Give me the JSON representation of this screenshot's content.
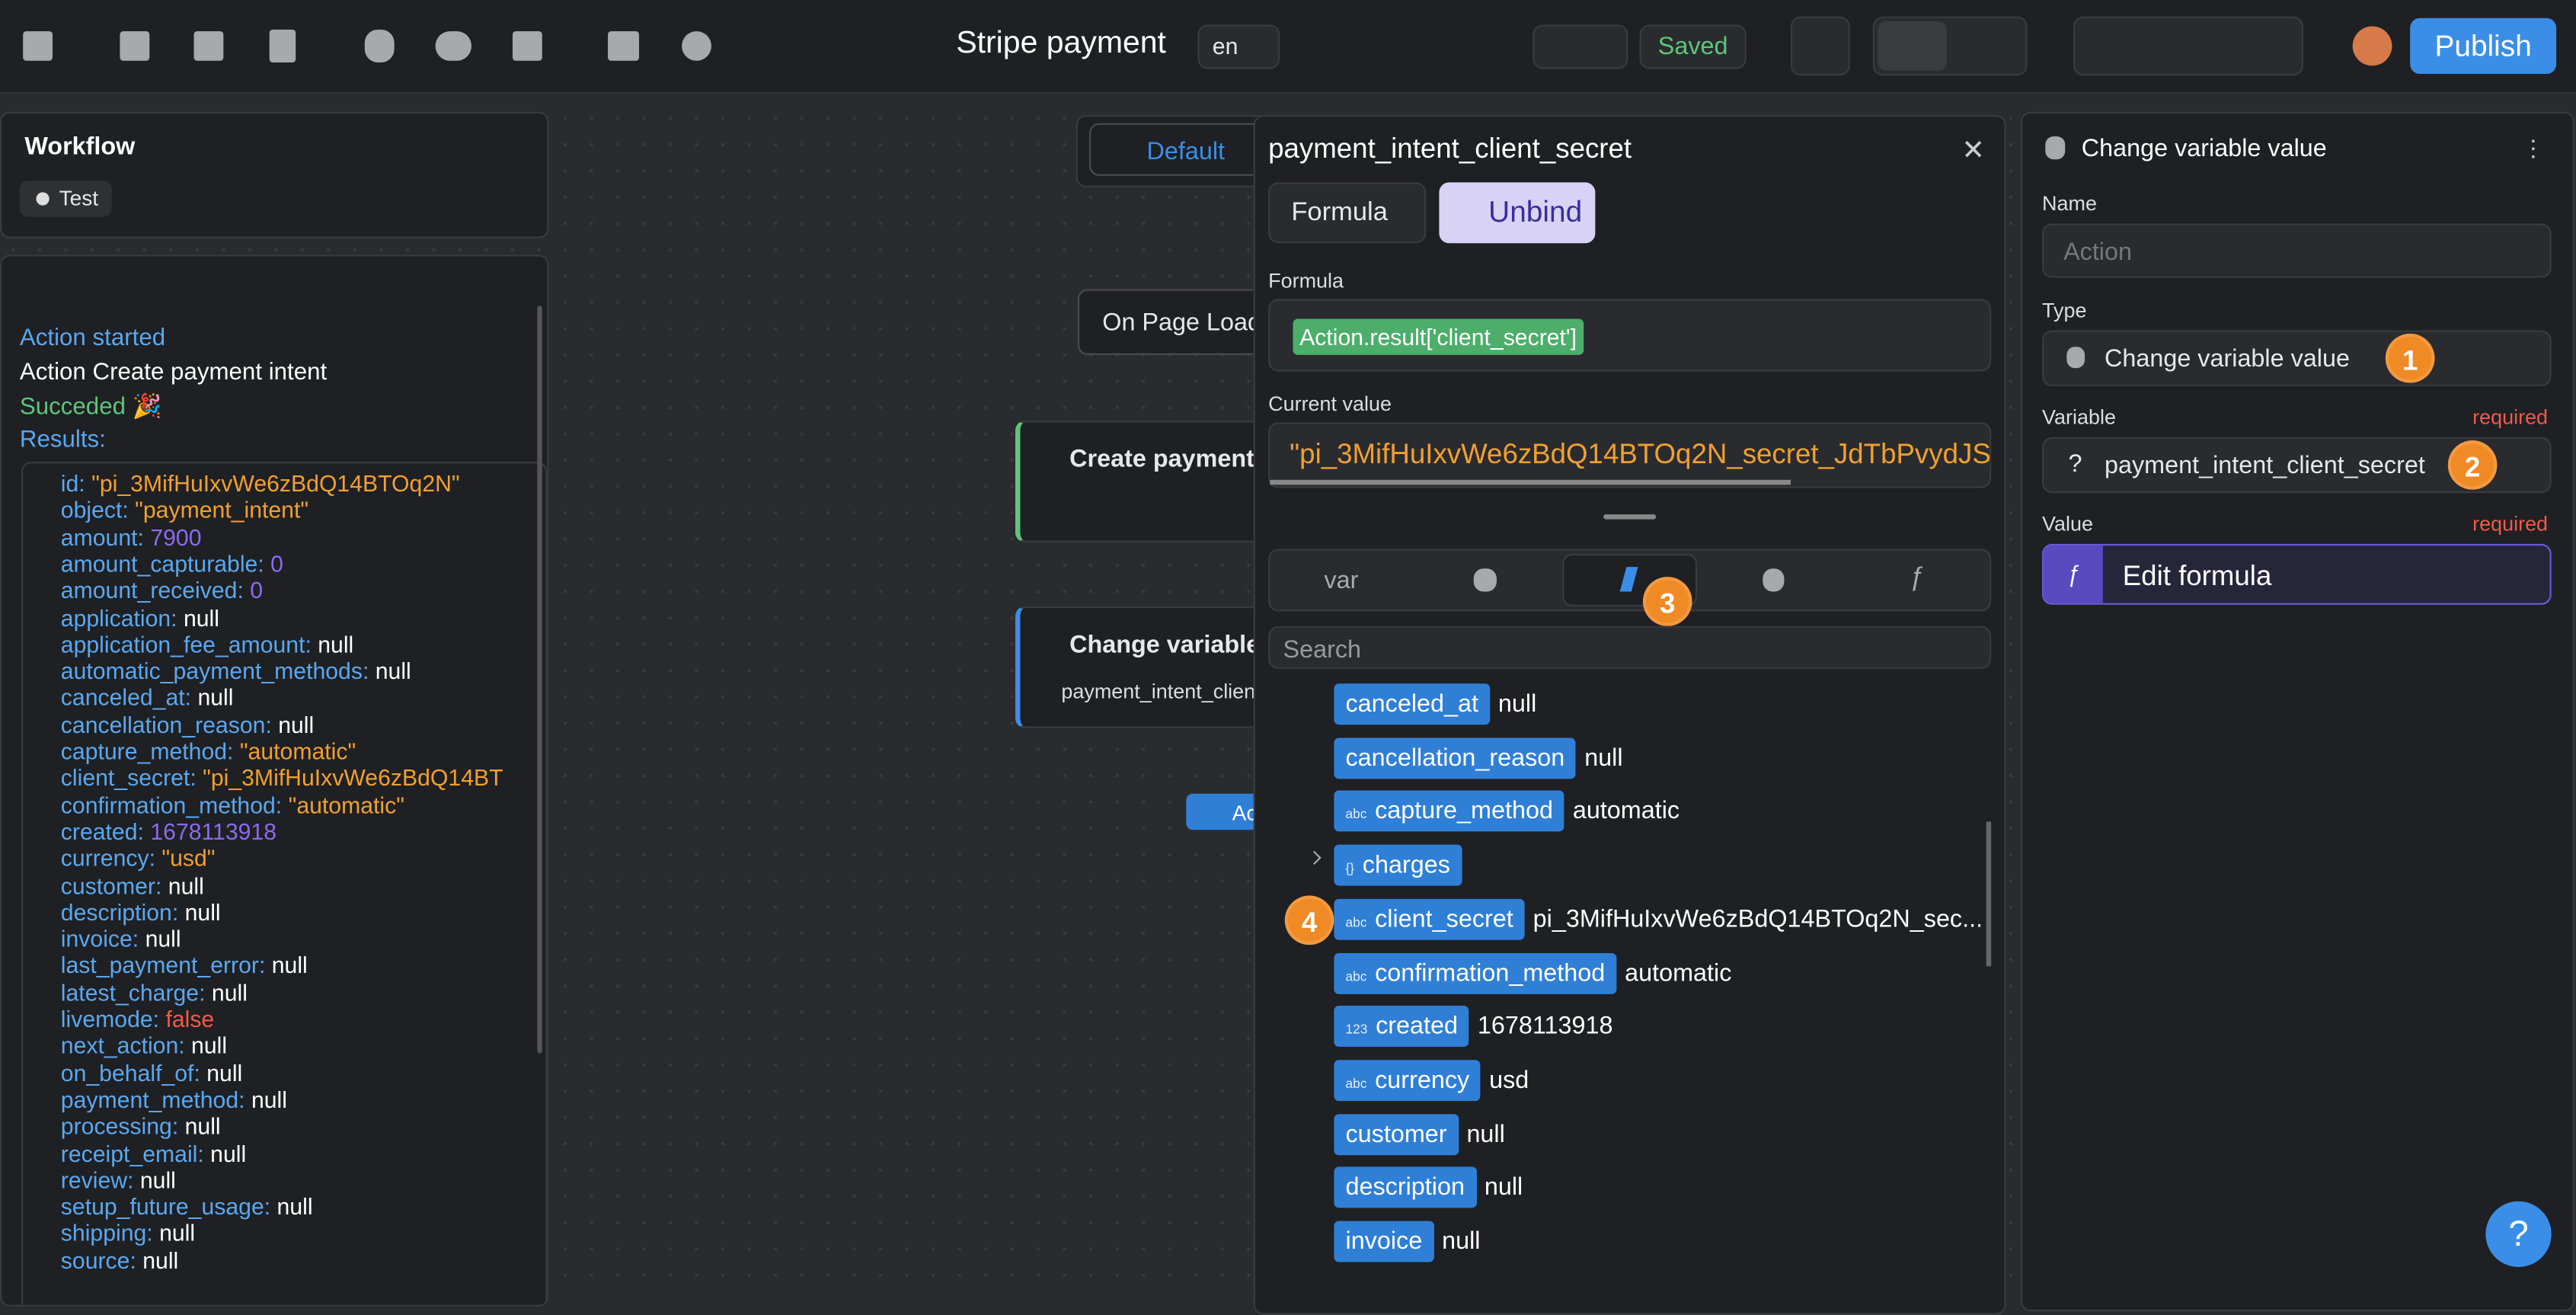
{
  "toolbar": {
    "title": "Stripe payment",
    "lang": "en",
    "status": "Saved",
    "publish": "Publish"
  },
  "workflow": {
    "title": "Workflow",
    "test": "Test"
  },
  "log": {
    "lines": [
      "Action started",
      "Action Create payment intent",
      "Succeded 🎉",
      "Results:"
    ],
    "results": [
      [
        "id:",
        "\"pi_3MifHuIxvWe6zBdQ14BTOq2N\""
      ],
      [
        "object:",
        "\"payment_intent\""
      ],
      [
        "amount:",
        "7900"
      ],
      [
        "amount_capturable:",
        "0"
      ],
      [
        "amount_received:",
        "0"
      ],
      [
        "application:",
        "null"
      ],
      [
        "application_fee_amount:",
        "null"
      ],
      [
        "automatic_payment_methods:",
        "null"
      ],
      [
        "canceled_at:",
        "null"
      ],
      [
        "cancellation_reason:",
        "null"
      ],
      [
        "capture_method:",
        "\"automatic\""
      ],
      [
        "client_secret:",
        "\"pi_3MifHuIxvWe6zBdQ14BT"
      ],
      [
        "confirmation_method:",
        "\"automatic\""
      ],
      [
        "created:",
        "1678113918"
      ],
      [
        "currency:",
        "\"usd\""
      ],
      [
        "customer:",
        "null"
      ],
      [
        "description:",
        "null"
      ],
      [
        "invoice:",
        "null"
      ],
      [
        "last_payment_error:",
        "null"
      ],
      [
        "latest_charge:",
        "null"
      ],
      [
        "livemode:",
        "false"
      ],
      [
        "next_action:",
        "null"
      ],
      [
        "on_behalf_of:",
        "null"
      ],
      [
        "payment_method:",
        "null"
      ],
      [
        "processing:",
        "null"
      ],
      [
        "receipt_email:",
        "null"
      ],
      [
        "review:",
        "null"
      ],
      [
        "setup_future_usage:",
        "null"
      ],
      [
        "shipping:",
        "null"
      ],
      [
        "source:",
        "null"
      ]
    ]
  },
  "canvas": {
    "tab": "Default",
    "trigger": "On Page Load",
    "action1": "Create payment",
    "action2": "Change variable",
    "action2_sub": "payment_intent_client_secret",
    "add": "Ac"
  },
  "formula_panel": {
    "title": "payment_intent_client_secret",
    "mode": "Formula",
    "unbind": "Unbind",
    "formula_label": "Formula",
    "formula": "Action.result['client_secret']",
    "current_label": "Current value",
    "current": "\"pi_3MifHuIxvWe6zBdQ14BTOq2N_secret_JdTbPvydJS",
    "tab_var": "var",
    "tab_fn": "ƒ",
    "badge": "3",
    "search": "Search",
    "item_badge": "4",
    "items": [
      {
        "icon": null,
        "name": "canceled_at",
        "value": "null"
      },
      {
        "icon": null,
        "name": "cancellation_reason",
        "value": "null"
      },
      {
        "icon": "abc",
        "name": "capture_method",
        "value": "automatic"
      },
      {
        "icon": "{}",
        "name": "charges",
        "value": null
      },
      {
        "icon": "abc",
        "name": "client_secret",
        "value": "pi_3MifHuIxvWe6zBdQ14BTOq2N_sec..."
      },
      {
        "icon": "abc",
        "name": "confirmation_method",
        "value": "automatic"
      },
      {
        "icon": "123",
        "name": "created",
        "value": "1678113918"
      },
      {
        "icon": "abc",
        "name": "currency",
        "value": "usd"
      },
      {
        "icon": null,
        "name": "customer",
        "value": "null"
      },
      {
        "icon": null,
        "name": "description",
        "value": "null"
      },
      {
        "icon": null,
        "name": "invoice",
        "value": "null"
      }
    ]
  },
  "settings": {
    "title": "Change variable value",
    "name_label": "Name",
    "name_placeholder": "Action",
    "type_label": "Type",
    "type_value": "Change variable value",
    "badge1": "1",
    "variable_label": "Variable",
    "variable_required": "required",
    "variable_value": "payment_intent_client_secret",
    "badge2": "2",
    "variable_icon": "?",
    "value_label": "Value",
    "value_required": "required",
    "value_icon": "ƒ",
    "value": "Edit formula",
    "help": "?"
  }
}
